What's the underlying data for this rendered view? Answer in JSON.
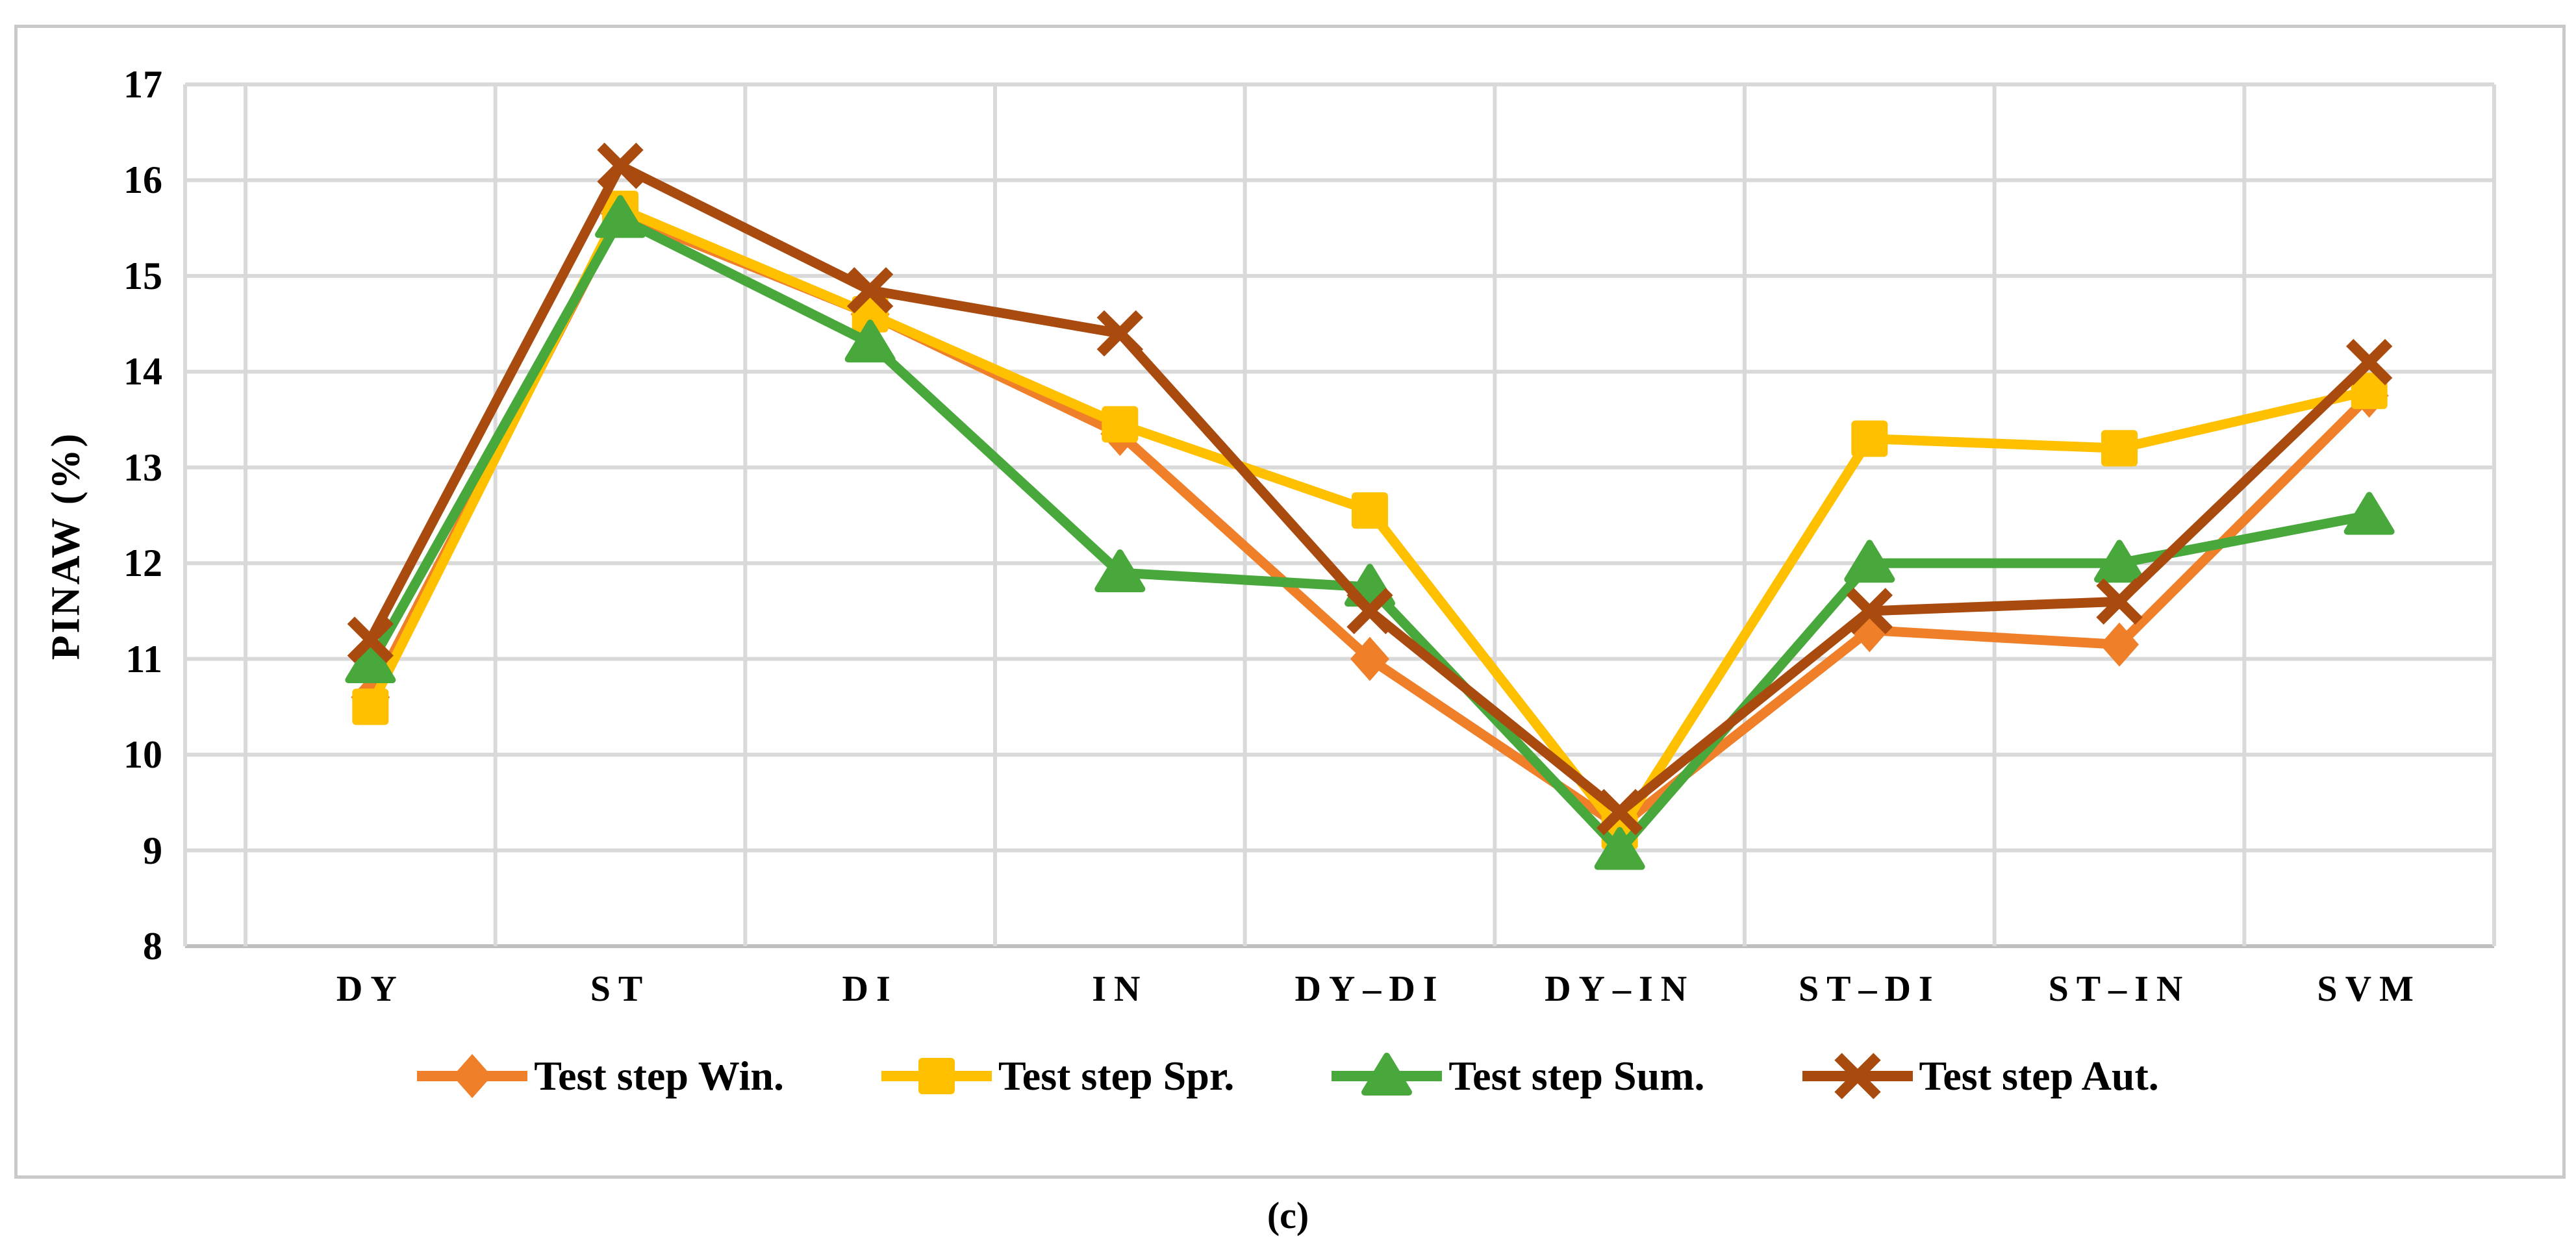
{
  "figure": {
    "caption": "(c)"
  },
  "chart_data": {
    "type": "line",
    "title": "",
    "xlabel": "",
    "ylabel": "PINAW  (%)",
    "ylim": [
      8,
      17
    ],
    "yticks": [
      8,
      9,
      10,
      11,
      12,
      13,
      14,
      15,
      16,
      17
    ],
    "grid": true,
    "legend_position": "bottom",
    "categories": [
      "DY",
      "ST",
      "DI",
      "IN",
      "DY–DI",
      "DY–IN",
      "ST–DI",
      "ST–IN",
      "SVM"
    ],
    "series": [
      {
        "name": "Test step Win.",
        "marker": "diamond",
        "color": "#F07F2A",
        "values": [
          10.6,
          15.65,
          14.6,
          13.35,
          11.0,
          9.25,
          11.3,
          11.15,
          13.75
        ]
      },
      {
        "name": "Test step Spr.",
        "marker": "square",
        "color": "#FFC000",
        "values": [
          10.5,
          15.7,
          14.6,
          13.45,
          12.55,
          9.2,
          13.3,
          13.2,
          13.8
        ]
      },
      {
        "name": "Test step Sum.",
        "marker": "triangle",
        "color": "#48A83B",
        "values": [
          10.95,
          15.6,
          14.3,
          11.9,
          11.75,
          9.0,
          12.0,
          12.0,
          12.5
        ]
      },
      {
        "name": "Test step Aut.",
        "marker": "x",
        "color": "#A94A0F",
        "values": [
          11.2,
          16.15,
          14.85,
          14.4,
          11.5,
          9.4,
          11.5,
          11.6,
          14.1
        ]
      }
    ],
    "colors": {
      "gridline": "#D9D9D9",
      "axisline": "#BFBFBF",
      "text": "#000000"
    }
  }
}
